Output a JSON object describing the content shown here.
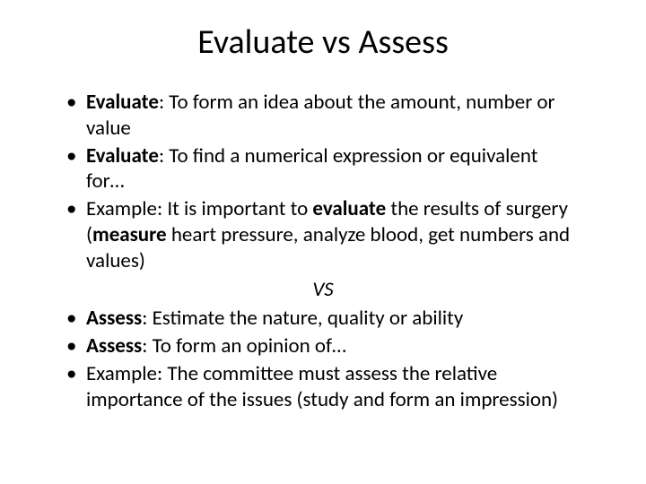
{
  "title": "Evaluate vs Assess",
  "bullets": {
    "b1_lead": "Evaluate",
    "b1_rest": ": To form an idea about the amount, number or value",
    "b2_lead": "Evaluate",
    "b2_rest": ": To find a numerical expression or equivalent for…",
    "b3_pre": "Example: It is important to ",
    "b3_bold1": "evaluate ",
    "b3_mid": "the results of surgery (",
    "b3_bold2": "measure ",
    "b3_post": "heart pressure, analyze blood, get numbers and values)",
    "vs": "VS",
    "b4_lead": "Assess",
    "b4_rest": ": Estimate the nature, quality or ability",
    "b5_lead": "Assess",
    "b5_rest": ": To form an opinion of…",
    "b6": "Example: The committee must assess the relative importance of the issues (study and form an impression)"
  },
  "colors": {
    "background": "#ffffff",
    "text": "#000000"
  },
  "typography": {
    "title_fontsize": 38,
    "body_fontsize": 23,
    "font_family": "Calibri"
  }
}
